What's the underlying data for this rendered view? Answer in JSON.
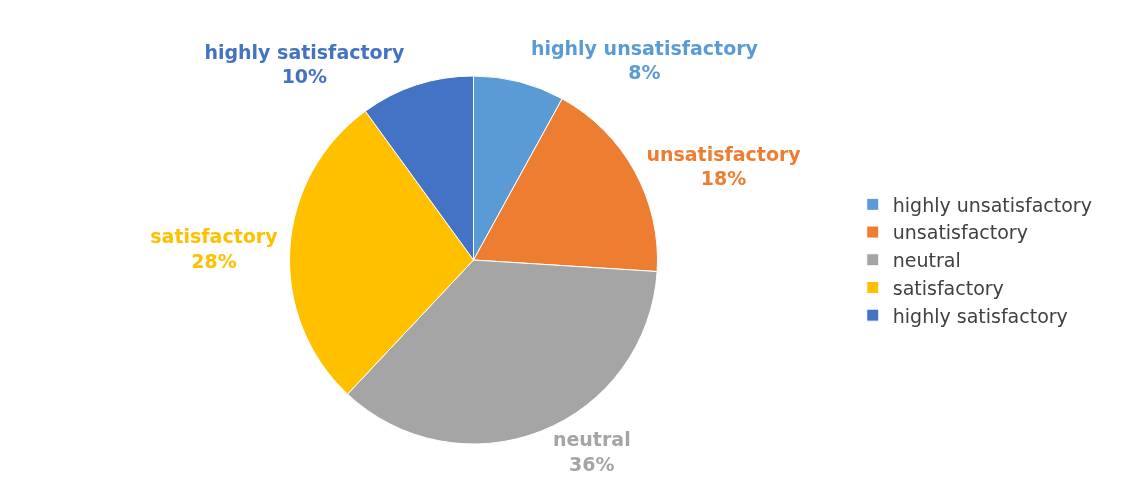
{
  "chart_data": {
    "type": "pie",
    "categories": [
      "highly unsatisfactory",
      "unsatisfactory",
      "neutral",
      "satisfactory",
      "highly satisfactory"
    ],
    "values": [
      8,
      18,
      36,
      28,
      10
    ],
    "value_labels": [
      "8%",
      "18%",
      "36%",
      "28%",
      "10%"
    ],
    "colors": [
      "#5b9bd5",
      "#ed7d31",
      "#a5a5a5",
      "#ffc000",
      "#4472c4"
    ],
    "legend": "right"
  }
}
